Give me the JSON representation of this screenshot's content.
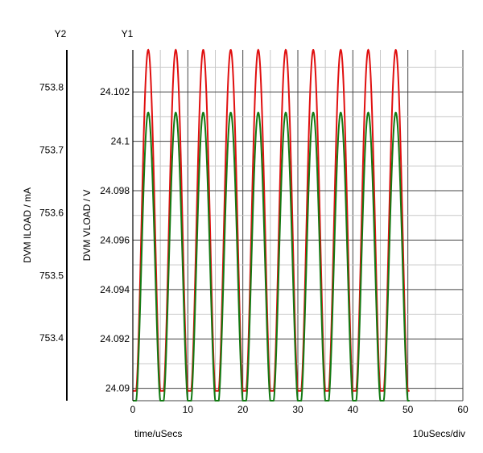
{
  "chart_data": {
    "type": "line",
    "y1_axis_title": "Y1",
    "y2_axis_title": "Y2",
    "y1_label": "DVM VLOAD / V",
    "y2_label": "DVM ILOAD / mA",
    "xlabel": "time/uSecs",
    "x_scale_note": "10uSecs/div",
    "xlim": [
      0,
      60
    ],
    "y1_lim": [
      24.0895,
      24.1037
    ],
    "y2_lim": [
      753.3,
      753.86
    ],
    "x_ticks": [
      "0",
      "10",
      "20",
      "30",
      "40",
      "50",
      "60"
    ],
    "y1_ticks": [
      "24.09",
      "24.092",
      "24.094",
      "24.096",
      "24.098",
      "24.1",
      "24.102"
    ],
    "y2_ticks": [
      "753.4",
      "753.5",
      "753.6",
      "753.7",
      "753.8"
    ],
    "series": [
      {
        "color": "#e01010",
        "axis": "y1",
        "period_us": 5.0,
        "x_start": 0.0,
        "x_end": 50.3,
        "min": 24.0899,
        "max": 24.1037
      },
      {
        "color": "#137a13",
        "axis": "y2",
        "period_us": 5.0,
        "x_start": 0.0,
        "x_end": 50.3,
        "min": 753.3,
        "max": 753.76
      }
    ]
  }
}
